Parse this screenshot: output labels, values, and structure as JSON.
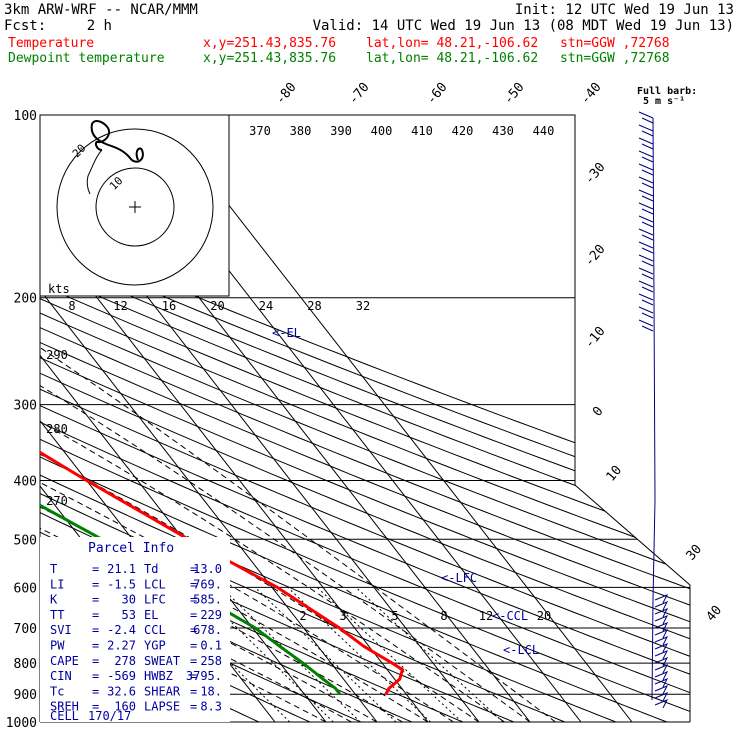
{
  "header": {
    "model": "3km ARW-WRF -- NCAR/MMM",
    "init": "Init: 12 UTC Wed 19 Jun 13",
    "fcst_label": "Fcst:",
    "fcst_value": "2 h",
    "valid": "Valid: 14 UTC Wed 19 Jun 13 (08 MDT Wed 19 Jun 13)",
    "lines": [
      {
        "label": "Temperature",
        "xy": "x,y=251.43,835.76",
        "latlon": "lat,lon= 48.21,-106.62",
        "stn": "stn=GGW ,72768",
        "color": "#ff0000"
      },
      {
        "label": "Dewpoint temperature",
        "xy": "x,y=251.43,835.76",
        "latlon": "lat,lon= 48.21,-106.62",
        "stn": "stn=GGW ,72768",
        "color": "#008000"
      }
    ]
  },
  "colors": {
    "temperature": "#ff0000",
    "dewpoint": "#008000",
    "parcel_text": "#0000a0",
    "wind": "#000080"
  },
  "chart_data": [
    {
      "type": "line",
      "title": "",
      "y_axis": "pressure",
      "y_scale": "log",
      "ylim": [
        1000,
        100
      ],
      "isobars": [
        100,
        200,
        300,
        400,
        500,
        600,
        700,
        800,
        900,
        1000
      ],
      "isobar_labels": [
        "100",
        "200",
        "300",
        "400",
        "500",
        "600",
        "700",
        "800",
        "900",
        "1000"
      ],
      "isotherm_labels": [
        {
          "text": "-80",
          "t": -80
        },
        {
          "text": "-70",
          "t": -70
        },
        {
          "text": "-60",
          "t": -60
        },
        {
          "text": "-50",
          "t": -50
        },
        {
          "text": "-40",
          "t": -40
        },
        {
          "text": "-30",
          "t": -30
        },
        {
          "text": "-20",
          "t": -20
        },
        {
          "text": "-10",
          "t": -10
        },
        {
          "text": "0",
          "t": 0
        },
        {
          "text": "10",
          "t": 10
        },
        {
          "text": "30",
          "t": 30
        },
        {
          "text": "40",
          "t": 40
        }
      ],
      "theta_labels": [
        "370",
        "380",
        "390",
        "400",
        "410",
        "420",
        "430",
        "440"
      ],
      "dry_adiabat_labels": [
        "290",
        "280",
        "270"
      ],
      "mixing_ratio_labels": [
        "2",
        "3",
        "5",
        "8",
        "12",
        "20"
      ],
      "series": [
        {
          "name": "Temperature",
          "points": [
            [
              900,
              6
            ],
            [
              880,
              7.5
            ],
            [
              850,
              11
            ],
            [
              820,
              13
            ],
            [
              800,
              12
            ],
            [
              750,
              9
            ],
            [
              700,
              7
            ],
            [
              600,
              1
            ],
            [
              500,
              -9
            ],
            [
              400,
              -20
            ],
            [
              300,
              -33
            ],
            [
              250,
              -42
            ],
            [
              200,
              -57
            ],
            [
              190,
              -58
            ],
            [
              175,
              -55
            ],
            [
              150,
              -55
            ],
            [
              120,
              -56
            ],
            [
              100,
              -58
            ]
          ]
        },
        {
          "name": "Dewpoint temperature",
          "points": [
            [
              900,
              -3
            ],
            [
              880,
              -3
            ],
            [
              850,
              -4
            ],
            [
              800,
              -5.5
            ],
            [
              750,
              -7.5
            ],
            [
              700,
              -9.5
            ],
            [
              600,
              -17
            ],
            [
              500,
              -26
            ],
            [
              400,
              -38
            ],
            [
              350,
              -41
            ],
            [
              300,
              -47
            ],
            [
              250,
              -55
            ],
            [
              200,
              -63
            ],
            [
              175,
              -60
            ],
            [
              150,
              -60
            ],
            [
              130,
              -62
            ],
            [
              115,
              -72
            ],
            [
              100,
              -82
            ]
          ]
        }
      ],
      "annotations": [
        "<-EL",
        "<-LFC",
        "<-CCL",
        "<-LCL"
      ]
    },
    {
      "type": "line",
      "title": "hodograph",
      "xlabel": "kts",
      "ring_labels": [
        "20",
        "10"
      ],
      "speed_labels": [
        "8",
        "12",
        "16",
        "20",
        "24",
        "28",
        "32"
      ]
    }
  ],
  "barb_legend": {
    "line1": "Full barb:",
    "line2": "5 m s⁻¹"
  },
  "parcel": {
    "title": "Parcel Info",
    "rows": [
      [
        {
          "k": "T",
          "v": "21.1"
        },
        {
          "k": "Td",
          "v": "13.0"
        }
      ],
      [
        {
          "k": "LI",
          "v": "-1.5"
        },
        {
          "k": "LCL",
          "v": "769."
        }
      ],
      [
        {
          "k": "K",
          "v": "30"
        },
        {
          "k": "LFC",
          "v": "585."
        }
      ],
      [
        {
          "k": "TT",
          "v": "53"
        },
        {
          "k": "EL",
          "v": "229"
        }
      ],
      [
        {
          "k": "SVI",
          "v": "-2.4"
        },
        {
          "k": "CCL",
          "v": "678."
        }
      ],
      [
        {
          "k": "PW",
          "v": "2.27"
        },
        {
          "k": "YGP",
          "v": "0.1"
        }
      ],
      [
        {
          "k": "CAPE",
          "v": "278"
        },
        {
          "k": "SWEAT",
          "v": "258"
        }
      ],
      [
        {
          "k": "CIN",
          "v": "-569"
        },
        {
          "k": "HWBZ",
          "v": "3795."
        }
      ],
      [
        {
          "k": "Tc",
          "v": "32.6"
        },
        {
          "k": "SHEAR",
          "v": "18."
        }
      ],
      [
        {
          "k": "SREH",
          "v": "160"
        },
        {
          "k": "LAPSE",
          "v": "8.3"
        }
      ]
    ],
    "cell_label": "CELL",
    "cell_value": "170/17"
  }
}
